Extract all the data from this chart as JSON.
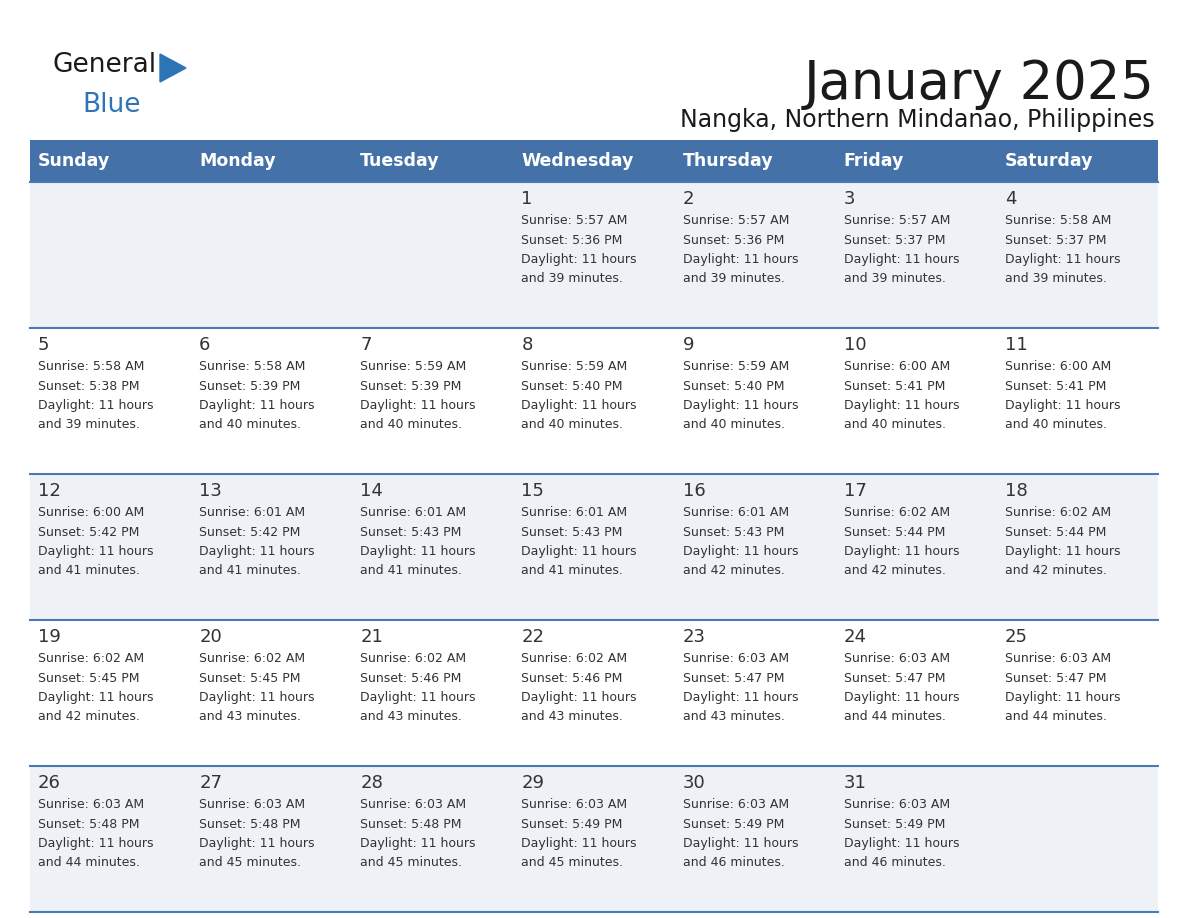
{
  "title": "January 2025",
  "subtitle": "Nangka, Northern Mindanao, Philippines",
  "header_bg_color": "#4472a8",
  "header_text_color": "#ffffff",
  "day_names": [
    "Sunday",
    "Monday",
    "Tuesday",
    "Wednesday",
    "Thursday",
    "Friday",
    "Saturday"
  ],
  "background_color": "#ffffff",
  "cell_bg_light": "#eef2f7",
  "cell_bg_white": "#ffffff",
  "separator_color": "#4a7ab5",
  "text_color": "#333333",
  "title_color": "#1a1a1a",
  "logo_general_color": "#1a1a1a",
  "logo_blue_color": "#2e75b6",
  "logo_triangle_color": "#2e75b6",
  "days": [
    {
      "day": 1,
      "col": 3,
      "row": 0,
      "sunrise": "5:57 AM",
      "sunset": "5:36 PM",
      "daylight_hours": 11,
      "daylight_minutes": 39
    },
    {
      "day": 2,
      "col": 4,
      "row": 0,
      "sunrise": "5:57 AM",
      "sunset": "5:36 PM",
      "daylight_hours": 11,
      "daylight_minutes": 39
    },
    {
      "day": 3,
      "col": 5,
      "row": 0,
      "sunrise": "5:57 AM",
      "sunset": "5:37 PM",
      "daylight_hours": 11,
      "daylight_minutes": 39
    },
    {
      "day": 4,
      "col": 6,
      "row": 0,
      "sunrise": "5:58 AM",
      "sunset": "5:37 PM",
      "daylight_hours": 11,
      "daylight_minutes": 39
    },
    {
      "day": 5,
      "col": 0,
      "row": 1,
      "sunrise": "5:58 AM",
      "sunset": "5:38 PM",
      "daylight_hours": 11,
      "daylight_minutes": 39
    },
    {
      "day": 6,
      "col": 1,
      "row": 1,
      "sunrise": "5:58 AM",
      "sunset": "5:39 PM",
      "daylight_hours": 11,
      "daylight_minutes": 40
    },
    {
      "day": 7,
      "col": 2,
      "row": 1,
      "sunrise": "5:59 AM",
      "sunset": "5:39 PM",
      "daylight_hours": 11,
      "daylight_minutes": 40
    },
    {
      "day": 8,
      "col": 3,
      "row": 1,
      "sunrise": "5:59 AM",
      "sunset": "5:40 PM",
      "daylight_hours": 11,
      "daylight_minutes": 40
    },
    {
      "day": 9,
      "col": 4,
      "row": 1,
      "sunrise": "5:59 AM",
      "sunset": "5:40 PM",
      "daylight_hours": 11,
      "daylight_minutes": 40
    },
    {
      "day": 10,
      "col": 5,
      "row": 1,
      "sunrise": "6:00 AM",
      "sunset": "5:41 PM",
      "daylight_hours": 11,
      "daylight_minutes": 40
    },
    {
      "day": 11,
      "col": 6,
      "row": 1,
      "sunrise": "6:00 AM",
      "sunset": "5:41 PM",
      "daylight_hours": 11,
      "daylight_minutes": 40
    },
    {
      "day": 12,
      "col": 0,
      "row": 2,
      "sunrise": "6:00 AM",
      "sunset": "5:42 PM",
      "daylight_hours": 11,
      "daylight_minutes": 41
    },
    {
      "day": 13,
      "col": 1,
      "row": 2,
      "sunrise": "6:01 AM",
      "sunset": "5:42 PM",
      "daylight_hours": 11,
      "daylight_minutes": 41
    },
    {
      "day": 14,
      "col": 2,
      "row": 2,
      "sunrise": "6:01 AM",
      "sunset": "5:43 PM",
      "daylight_hours": 11,
      "daylight_minutes": 41
    },
    {
      "day": 15,
      "col": 3,
      "row": 2,
      "sunrise": "6:01 AM",
      "sunset": "5:43 PM",
      "daylight_hours": 11,
      "daylight_minutes": 41
    },
    {
      "day": 16,
      "col": 4,
      "row": 2,
      "sunrise": "6:01 AM",
      "sunset": "5:43 PM",
      "daylight_hours": 11,
      "daylight_minutes": 42
    },
    {
      "day": 17,
      "col": 5,
      "row": 2,
      "sunrise": "6:02 AM",
      "sunset": "5:44 PM",
      "daylight_hours": 11,
      "daylight_minutes": 42
    },
    {
      "day": 18,
      "col": 6,
      "row": 2,
      "sunrise": "6:02 AM",
      "sunset": "5:44 PM",
      "daylight_hours": 11,
      "daylight_minutes": 42
    },
    {
      "day": 19,
      "col": 0,
      "row": 3,
      "sunrise": "6:02 AM",
      "sunset": "5:45 PM",
      "daylight_hours": 11,
      "daylight_minutes": 42
    },
    {
      "day": 20,
      "col": 1,
      "row": 3,
      "sunrise": "6:02 AM",
      "sunset": "5:45 PM",
      "daylight_hours": 11,
      "daylight_minutes": 43
    },
    {
      "day": 21,
      "col": 2,
      "row": 3,
      "sunrise": "6:02 AM",
      "sunset": "5:46 PM",
      "daylight_hours": 11,
      "daylight_minutes": 43
    },
    {
      "day": 22,
      "col": 3,
      "row": 3,
      "sunrise": "6:02 AM",
      "sunset": "5:46 PM",
      "daylight_hours": 11,
      "daylight_minutes": 43
    },
    {
      "day": 23,
      "col": 4,
      "row": 3,
      "sunrise": "6:03 AM",
      "sunset": "5:47 PM",
      "daylight_hours": 11,
      "daylight_minutes": 43
    },
    {
      "day": 24,
      "col": 5,
      "row": 3,
      "sunrise": "6:03 AM",
      "sunset": "5:47 PM",
      "daylight_hours": 11,
      "daylight_minutes": 44
    },
    {
      "day": 25,
      "col": 6,
      "row": 3,
      "sunrise": "6:03 AM",
      "sunset": "5:47 PM",
      "daylight_hours": 11,
      "daylight_minutes": 44
    },
    {
      "day": 26,
      "col": 0,
      "row": 4,
      "sunrise": "6:03 AM",
      "sunset": "5:48 PM",
      "daylight_hours": 11,
      "daylight_minutes": 44
    },
    {
      "day": 27,
      "col": 1,
      "row": 4,
      "sunrise": "6:03 AM",
      "sunset": "5:48 PM",
      "daylight_hours": 11,
      "daylight_minutes": 45
    },
    {
      "day": 28,
      "col": 2,
      "row": 4,
      "sunrise": "6:03 AM",
      "sunset": "5:48 PM",
      "daylight_hours": 11,
      "daylight_minutes": 45
    },
    {
      "day": 29,
      "col": 3,
      "row": 4,
      "sunrise": "6:03 AM",
      "sunset": "5:49 PM",
      "daylight_hours": 11,
      "daylight_minutes": 45
    },
    {
      "day": 30,
      "col": 4,
      "row": 4,
      "sunrise": "6:03 AM",
      "sunset": "5:49 PM",
      "daylight_hours": 11,
      "daylight_minutes": 46
    },
    {
      "day": 31,
      "col": 5,
      "row": 4,
      "sunrise": "6:03 AM",
      "sunset": "5:49 PM",
      "daylight_hours": 11,
      "daylight_minutes": 46
    }
  ]
}
